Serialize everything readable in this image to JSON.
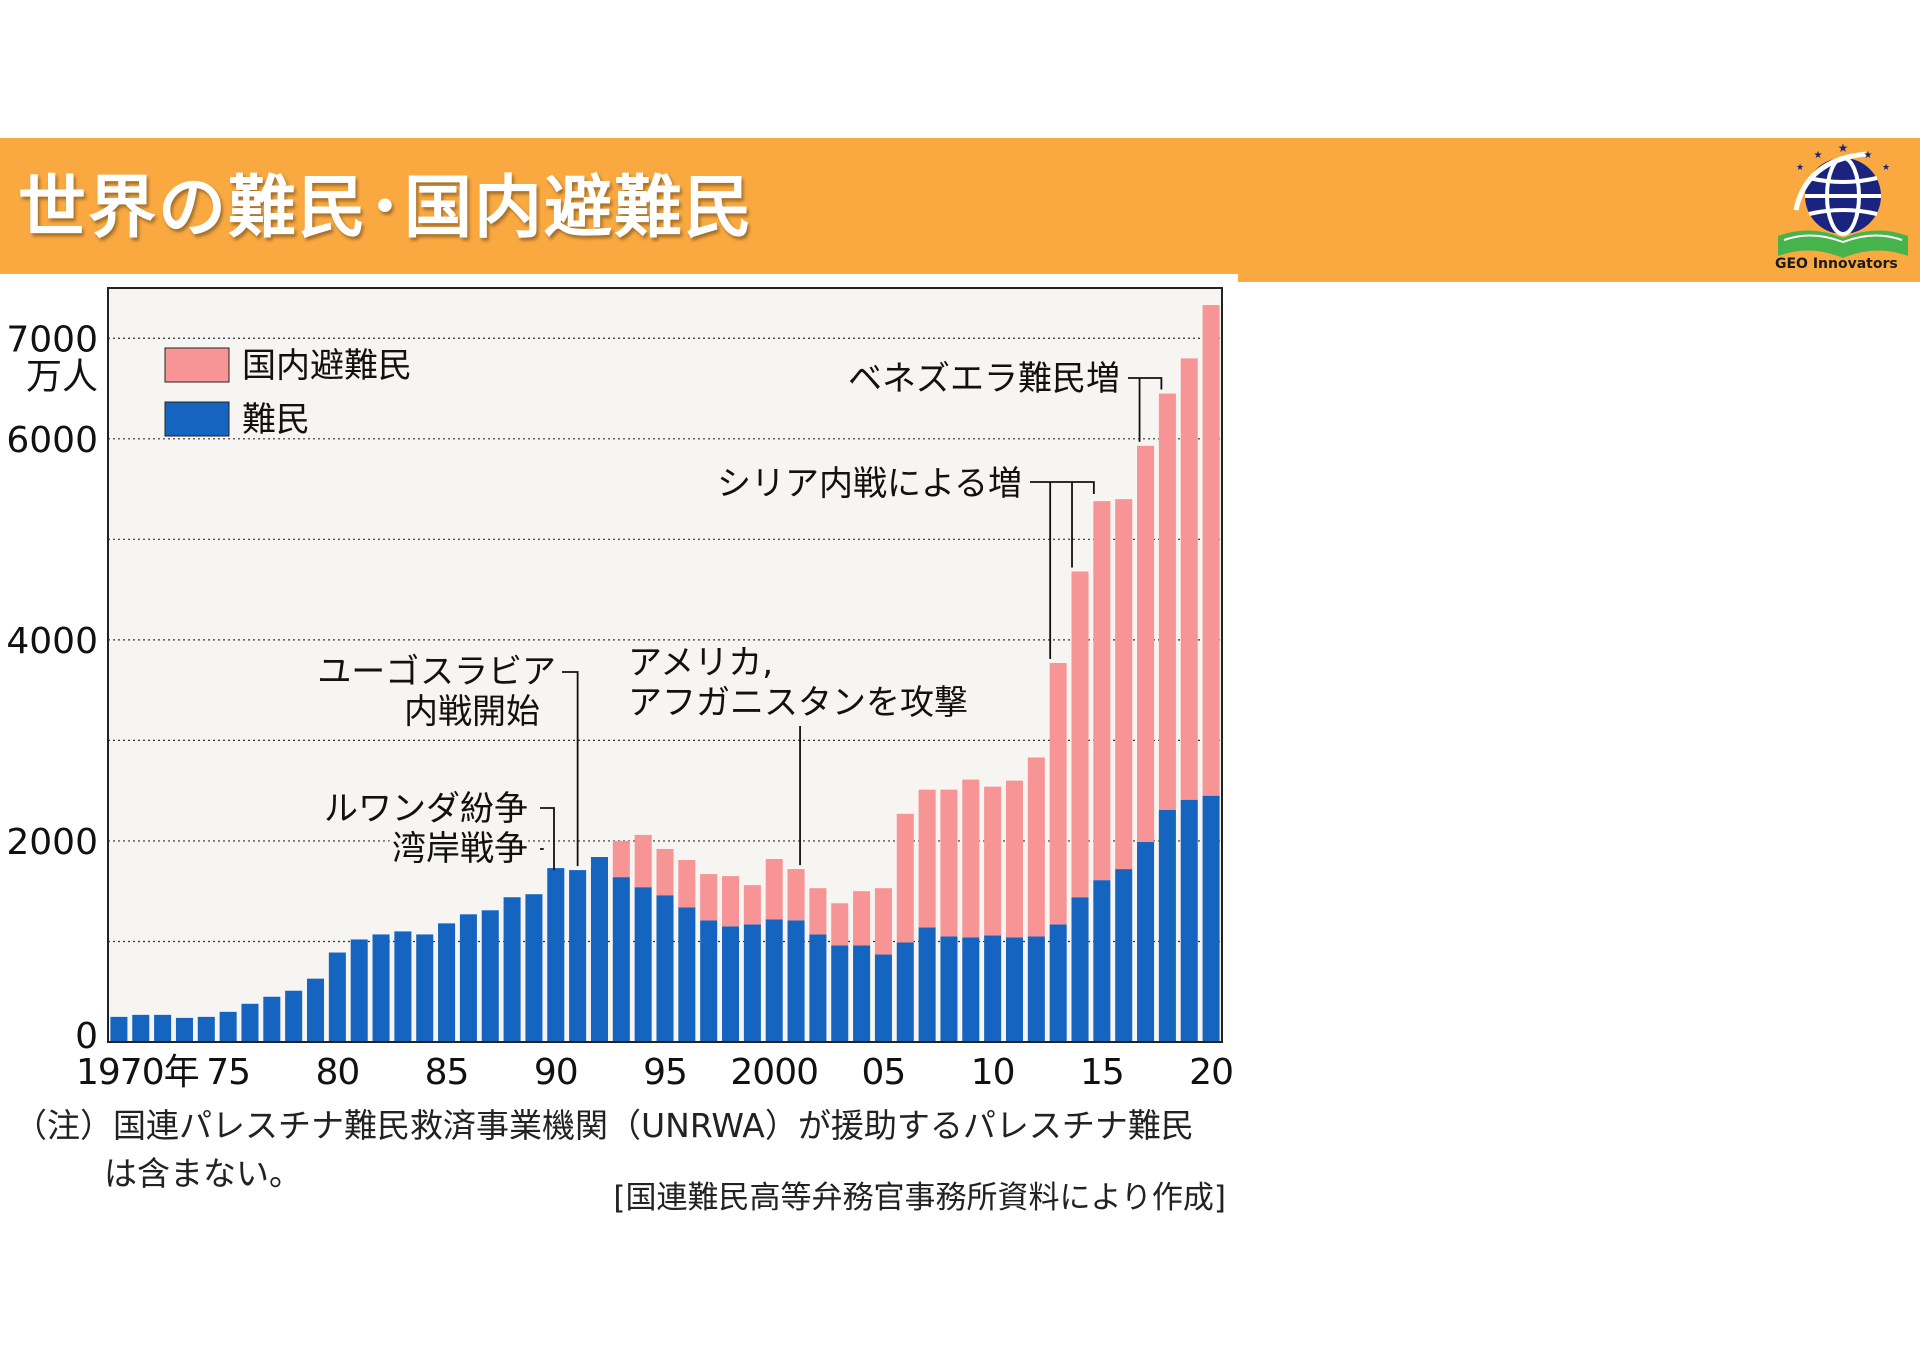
{
  "header": {
    "title": "世界の難民･国内避難民",
    "logo_text": "GEO Innovators",
    "logo_icon": "globe-book-icon",
    "banner_color": "#f9a940"
  },
  "chart_data": {
    "type": "bar",
    "stacked": true,
    "x": [
      1970,
      1971,
      1972,
      1973,
      1974,
      1975,
      1976,
      1977,
      1978,
      1979,
      1980,
      1981,
      1982,
      1983,
      1984,
      1985,
      1986,
      1987,
      1988,
      1989,
      1990,
      1991,
      1992,
      1993,
      1994,
      1995,
      1996,
      1997,
      1998,
      1999,
      2000,
      2001,
      2002,
      2003,
      2004,
      2005,
      2006,
      2007,
      2008,
      2009,
      2010,
      2011,
      2012,
      2013,
      2014,
      2015,
      2016,
      2017,
      2018,
      2019,
      2020
    ],
    "series": [
      {
        "name": "難民",
        "color": "#1565c0",
        "values": [
          250,
          270,
          270,
          240,
          250,
          300,
          380,
          450,
          510,
          630,
          890,
          1020,
          1070,
          1100,
          1070,
          1180,
          1270,
          1310,
          1440,
          1470,
          1730,
          1710,
          1840,
          1640,
          1540,
          1460,
          1340,
          1210,
          1150,
          1170,
          1220,
          1210,
          1070,
          960,
          960,
          870,
          990,
          1140,
          1050,
          1040,
          1060,
          1040,
          1050,
          1170,
          1440,
          1610,
          1720,
          1990,
          2310,
          2410,
          2450
        ]
      },
      {
        "name": "国内避難民",
        "color": "#f79496",
        "values": [
          0,
          0,
          0,
          0,
          0,
          0,
          0,
          0,
          0,
          0,
          0,
          0,
          0,
          0,
          0,
          0,
          0,
          0,
          0,
          0,
          0,
          0,
          0,
          360,
          520,
          460,
          470,
          460,
          500,
          390,
          600,
          510,
          460,
          420,
          540,
          660,
          1280,
          1370,
          1460,
          1570,
          1480,
          1560,
          1780,
          2600,
          3240,
          3770,
          3680,
          3940,
          4140,
          4390,
          4880
        ]
      }
    ],
    "y_tick_labels": [
      "0",
      "2000",
      "4000",
      "6000",
      "7000"
    ],
    "y_unit_label": "万人",
    "x_tick_labels": [
      {
        "year": 1970,
        "label": "1970年"
      },
      {
        "year": 1975,
        "label": "75"
      },
      {
        "year": 1980,
        "label": "80"
      },
      {
        "year": 1985,
        "label": "85"
      },
      {
        "year": 1990,
        "label": "90"
      },
      {
        "year": 1995,
        "label": "95"
      },
      {
        "year": 2000,
        "label": "2000"
      },
      {
        "year": 2005,
        "label": "05"
      },
      {
        "year": 2010,
        "label": "10"
      },
      {
        "year": 2015,
        "label": "15"
      },
      {
        "year": 2020,
        "label": "20"
      }
    ],
    "ylim": [
      0,
      7500
    ],
    "grid": "dotted horizontal every 1000",
    "legend": {
      "placement": "top-left"
    },
    "annotations": [
      {
        "lines": [
          "ユーゴスラビア",
          "内戦開始"
        ],
        "years": [
          1991
        ]
      },
      {
        "lines": [
          "ルワンダ紛争"
        ],
        "years": [
          1990
        ]
      },
      {
        "lines": [
          "湾岸戦争"
        ],
        "years": [
          1990
        ]
      },
      {
        "lines": [
          "アメリカ,",
          "アフガニスタンを攻撃"
        ],
        "years": [
          2001
        ]
      },
      {
        "lines": [
          "シリア内戦による増"
        ],
        "years": [
          2013,
          2014,
          2015
        ]
      },
      {
        "lines": [
          "ベネズエラ難民増"
        ],
        "years": [
          2017,
          2018
        ]
      }
    ],
    "plot_background": "#f7f5f2"
  },
  "footer": {
    "note_line1": "（注）国連パレスチナ難民救済事業機関（UNRWA）が援助するパレスチナ難民",
    "note_line2": "は含まない。",
    "source": "[国連難民高等弁務官事務所資料により作成]"
  }
}
